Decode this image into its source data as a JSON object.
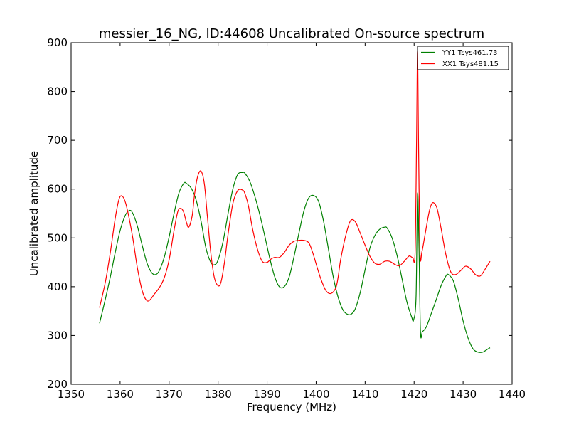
{
  "chart_data": {
    "type": "line",
    "title": "messier_16_NG, ID:44608 Uncalibrated On-source spectrum",
    "xlabel": "Frequency (MHz)",
    "ylabel": "Uncalibrated amplitude",
    "xlim": [
      1350,
      1440
    ],
    "ylim": [
      200,
      900
    ],
    "xticks": [
      1350,
      1360,
      1370,
      1380,
      1390,
      1400,
      1410,
      1420,
      1430,
      1440
    ],
    "yticks": [
      200,
      300,
      400,
      500,
      600,
      700,
      800,
      900
    ],
    "grid": false,
    "legend_position": "top-right",
    "series": [
      {
        "name": "YY1 Tsys461.73",
        "color": "#008000",
        "x": [
          1355.8,
          1357,
          1358,
          1359,
          1360,
          1361,
          1361.8,
          1362.5,
          1363.5,
          1364.5,
          1365.5,
          1366.5,
          1367.3,
          1368,
          1369,
          1370,
          1371,
          1372,
          1373,
          1373.5,
          1374.5,
          1375.5,
          1376.5,
          1377.5,
          1378.5,
          1379.3,
          1380,
          1381,
          1382,
          1383,
          1384,
          1385,
          1385.5,
          1386.5,
          1387.5,
          1388.5,
          1389.5,
          1390.5,
          1391.5,
          1392.5,
          1393.5,
          1394.5,
          1395.5,
          1396.5,
          1397.5,
          1398.5,
          1399.5,
          1400.5,
          1401.5,
          1402.5,
          1403.5,
          1404.5,
          1405.5,
          1406.5,
          1407.2,
          1408,
          1409,
          1410,
          1411,
          1412,
          1413,
          1414,
          1414.5,
          1415.5,
          1416.5,
          1417.5,
          1418.5,
          1419.5,
          1419.9,
          1420.4,
          1420.7,
          1421.0,
          1421.3,
          1421.7,
          1422.5,
          1423.5,
          1424.5,
          1425.5,
          1426.5,
          1427.0,
          1428,
          1429,
          1430,
          1431,
          1432,
          1433,
          1434,
          1435,
          1435.5
        ],
        "y": [
          325,
          375,
          420,
          470,
          515,
          545,
          556,
          552,
          525,
          485,
          448,
          428,
          425,
          433,
          460,
          502,
          550,
          592,
          612,
          612,
          602,
          578,
          535,
          480,
          450,
          445,
          455,
          492,
          548,
          600,
          630,
          634,
          632,
          615,
          585,
          548,
          505,
          460,
          422,
          400,
          400,
          420,
          462,
          510,
          555,
          582,
          587,
          575,
          535,
          478,
          420,
          378,
          352,
          343,
          344,
          355,
          388,
          435,
          480,
          505,
          518,
          522,
          520,
          500,
          465,
          418,
          370,
          338,
          332,
          380,
          590,
          480,
          308,
          308,
          318,
          345,
          373,
          402,
          422,
          425,
          412,
          375,
          330,
          295,
          273,
          266,
          266,
          272,
          275
        ]
      },
      {
        "name": "XX1 Tsys481.15",
        "color": "#ff0000",
        "x": [
          1355.8,
          1357,
          1358,
          1359,
          1359.8,
          1360.5,
          1361.3,
          1362.5,
          1363.5,
          1364.5,
          1365.3,
          1366,
          1367,
          1368,
          1369,
          1370,
          1371,
          1371.8,
          1372.5,
          1373,
          1373.5,
          1374,
          1374.7,
          1375.2,
          1375.8,
          1376.5,
          1377.2,
          1377.8,
          1378.5,
          1379.2,
          1380,
          1380.6,
          1381.3,
          1382,
          1383,
          1384,
          1385,
          1385.5,
          1386.2,
          1387,
          1388,
          1389,
          1390,
          1390.7,
          1391.5,
          1392.5,
          1393.5,
          1394.5,
          1395.5,
          1396.5,
          1397.5,
          1398.5,
          1399.3,
          1400.2,
          1401,
          1402,
          1403,
          1404,
          1404.5,
          1405,
          1406,
          1407,
          1408,
          1409,
          1410,
          1411,
          1412,
          1413,
          1414,
          1415,
          1416,
          1417,
          1418,
          1419,
          1419.7,
          1420.2,
          1420.5,
          1420.7,
          1420.9,
          1421.2,
          1421.6,
          1422.2,
          1423,
          1423.5,
          1424,
          1424.7,
          1425.5,
          1426.5,
          1427.5,
          1428.5,
          1429.5,
          1430.5,
          1431.5,
          1432.5,
          1433.5,
          1434.5,
          1435.5
        ],
        "y": [
          357,
          410,
          470,
          540,
          580,
          585,
          565,
          505,
          440,
          392,
          373,
          372,
          385,
          398,
          418,
          455,
          515,
          555,
          560,
          552,
          533,
          522,
          545,
          590,
          625,
          637,
          610,
          545,
          470,
          420,
          402,
          410,
          450,
          505,
          570,
          597,
          598,
          590,
          565,
          520,
          478,
          452,
          450,
          456,
          460,
          460,
          470,
          485,
          493,
          495,
          495,
          490,
          470,
          440,
          415,
          392,
          386,
          397,
          420,
          455,
          503,
          535,
          533,
          510,
          485,
          462,
          448,
          446,
          452,
          452,
          446,
          443,
          452,
          463,
          460,
          470,
          700,
          885,
          700,
          470,
          472,
          505,
          550,
          568,
          572,
          560,
          520,
          465,
          430,
          425,
          433,
          442,
          437,
          425,
          422,
          436,
          452
        ]
      }
    ]
  }
}
